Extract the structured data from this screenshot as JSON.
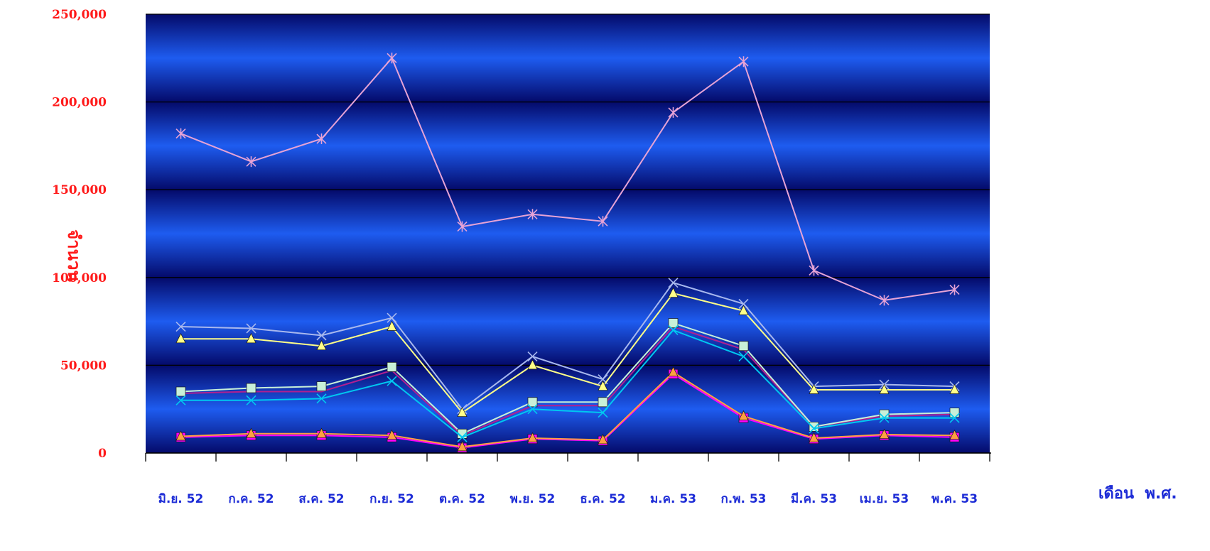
{
  "chart_data": {
    "type": "line",
    "title": "",
    "xlabel": "เดือน  พ.ศ.",
    "ylabel": "จำนวน",
    "ylim": [
      0,
      250000
    ],
    "yticks": [
      0,
      50000,
      100000,
      150000,
      200000,
      250000
    ],
    "ytick_labels": [
      "0",
      "50,000",
      "100,000",
      "150,000",
      "200,000",
      "250,000"
    ],
    "grid": true,
    "legend": "none",
    "categories": [
      "มิ.ย. 52",
      "ก.ค. 52",
      "ส.ค. 52",
      "ก.ย. 52",
      "ต.ค. 52",
      "พ.ย. 52",
      "ธ.ค. 52",
      "ม.ค. 53",
      "ก.พ. 53",
      "มี.ค. 53",
      "เม.ย. 53",
      "พ.ค. 53"
    ],
    "series": [
      {
        "color": "#e6a3d6",
        "marker": "star",
        "values": [
          182000,
          166000,
          179000,
          225000,
          129000,
          136000,
          132000,
          194000,
          223000,
          104000,
          87000,
          93000
        ]
      },
      {
        "color": "#a8b8ee",
        "marker": "x",
        "values": [
          72000,
          71000,
          67000,
          77000,
          25000,
          55000,
          42000,
          97000,
          85000,
          38000,
          39000,
          38000
        ]
      },
      {
        "color": "#ffff88",
        "marker": "triangle",
        "values": [
          65000,
          65000,
          61000,
          72000,
          23000,
          50000,
          38000,
          91000,
          81000,
          36000,
          36000,
          36000
        ]
      },
      {
        "color": "#b02090",
        "marker": "none",
        "values": [
          34000,
          35000,
          35000,
          47000,
          10000,
          27000,
          27000,
          72000,
          59000,
          15000,
          21000,
          22000
        ]
      },
      {
        "color": "#c8f0d8",
        "marker": "square",
        "values": [
          35000,
          37000,
          38000,
          49000,
          11000,
          29000,
          29000,
          74000,
          61000,
          15000,
          22000,
          23000
        ]
      },
      {
        "color": "#00c8f0",
        "marker": "x",
        "values": [
          30000,
          30000,
          31000,
          41000,
          9000,
          25000,
          23000,
          70000,
          55000,
          14000,
          20000,
          20000
        ]
      },
      {
        "color": "#ff00ff",
        "marker": "square",
        "values": [
          9000,
          10000,
          10000,
          9000,
          3000,
          8000,
          7000,
          45000,
          20000,
          8000,
          10000,
          9000
        ]
      },
      {
        "color": "#ffa040",
        "marker": "triangle",
        "values": [
          9500,
          11000,
          11000,
          10000,
          3500,
          8500,
          7500,
          46000,
          21000,
          8500,
          10500,
          10000
        ]
      }
    ]
  }
}
